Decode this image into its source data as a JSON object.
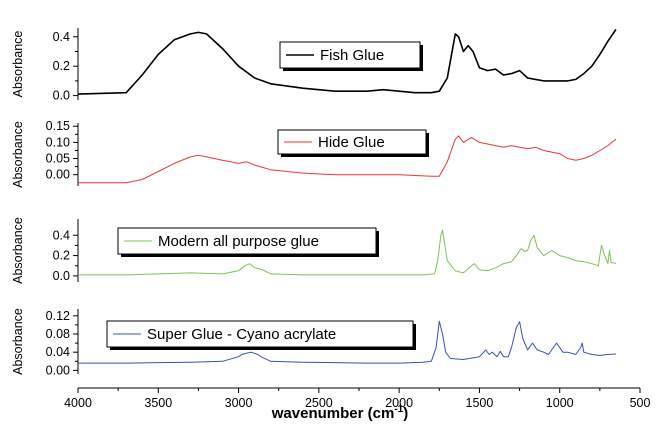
{
  "chart_data": {
    "type": "line",
    "xlabel": "wavenumber (cm",
    "xlabel_sup": "-1",
    "xlabel_tail": ")",
    "xlim": [
      4000,
      500
    ],
    "xticks": [
      "4000",
      "3500",
      "3000",
      "2500",
      "2000",
      "1500",
      "1000",
      "500"
    ],
    "xtick_values": [
      4000,
      3500,
      3000,
      2500,
      2000,
      1500,
      1000,
      500
    ],
    "panels": [
      {
        "ylabel": "Absorbance",
        "ylim": [
          -0.03,
          0.46
        ],
        "yticks": [
          "0.4",
          "0.2",
          "0.0"
        ],
        "ytick_values": [
          0.4,
          0.2,
          0.0
        ],
        "series": [
          {
            "name": "Fish Glue",
            "color": "#000000",
            "x": [
              4000,
              3700,
              3600,
              3500,
              3400,
              3300,
              3250,
              3200,
              3100,
              3000,
              2900,
              2800,
              2600,
              2400,
              2200,
              2100,
              2000,
              1900,
              1800,
              1750,
              1700,
              1650,
              1630,
              1600,
              1570,
              1540,
              1500,
              1450,
              1400,
              1350,
              1300,
              1250,
              1200,
              1150,
              1100,
              1050,
              1000,
              950,
              900,
              850,
              800,
              750,
              700,
              650
            ],
            "y": [
              0.01,
              0.02,
              0.14,
              0.28,
              0.38,
              0.42,
              0.43,
              0.42,
              0.32,
              0.2,
              0.12,
              0.08,
              0.05,
              0.03,
              0.03,
              0.04,
              0.03,
              0.02,
              0.02,
              0.03,
              0.12,
              0.42,
              0.4,
              0.3,
              0.34,
              0.3,
              0.19,
              0.17,
              0.18,
              0.14,
              0.15,
              0.17,
              0.12,
              0.11,
              0.1,
              0.1,
              0.1,
              0.1,
              0.11,
              0.15,
              0.2,
              0.28,
              0.37,
              0.45
            ]
          }
        ]
      },
      {
        "ylabel": "Absorbance",
        "ylim": [
          -0.035,
          0.16
        ],
        "yticks": [
          "0.15",
          "0.10",
          "0.05",
          "0.00"
        ],
        "ytick_values": [
          0.15,
          0.1,
          0.05,
          0.0
        ],
        "series": [
          {
            "name": "Hide Glue",
            "color": "#e8393a",
            "x": [
              4000,
              3700,
              3600,
              3500,
              3400,
              3300,
              3250,
              3200,
              3100,
              3000,
              2950,
              2900,
              2800,
              2600,
              2400,
              2200,
              2000,
              1800,
              1750,
              1700,
              1650,
              1630,
              1600,
              1550,
              1500,
              1450,
              1400,
              1350,
              1300,
              1250,
              1200,
              1150,
              1100,
              1050,
              1000,
              950,
              900,
              850,
              800,
              750,
              700,
              650
            ],
            "y": [
              -0.025,
              -0.025,
              -0.015,
              0.01,
              0.035,
              0.055,
              0.06,
              0.055,
              0.045,
              0.035,
              0.04,
              0.03,
              0.015,
              0.005,
              0.0,
              0.0,
              0.0,
              -0.005,
              -0.005,
              0.04,
              0.11,
              0.12,
              0.1,
              0.115,
              0.1,
              0.095,
              0.09,
              0.085,
              0.09,
              0.085,
              0.08,
              0.085,
              0.075,
              0.07,
              0.065,
              0.05,
              0.045,
              0.05,
              0.06,
              0.075,
              0.09,
              0.11
            ]
          }
        ]
      },
      {
        "ylabel": "Absorbance",
        "ylim": [
          -0.06,
          0.56
        ],
        "yticks": [
          "0.4",
          "0.2",
          "0.0"
        ],
        "ytick_values": [
          0.4,
          0.2,
          0.0
        ],
        "series": [
          {
            "name": "Modern all purpose glue",
            "color": "#7cc15a",
            "x": [
              4000,
              3700,
              3500,
              3300,
              3100,
              3000,
              2960,
              2930,
              2900,
              2870,
              2850,
              2800,
              2600,
              2400,
              2200,
              2000,
              1850,
              1780,
              1760,
              1740,
              1730,
              1720,
              1700,
              1650,
              1600,
              1550,
              1530,
              1500,
              1450,
              1400,
              1350,
              1300,
              1270,
              1240,
              1220,
              1200,
              1180,
              1160,
              1140,
              1100,
              1050,
              1020,
              1000,
              950,
              900,
              850,
              800,
              760,
              740,
              720,
              700,
              690,
              680,
              660,
              650
            ],
            "y": [
              0.01,
              0.01,
              0.02,
              0.03,
              0.02,
              0.05,
              0.1,
              0.12,
              0.08,
              0.07,
              0.06,
              0.02,
              0.01,
              0.01,
              0.01,
              0.01,
              0.01,
              0.02,
              0.15,
              0.4,
              0.45,
              0.35,
              0.15,
              0.05,
              0.03,
              0.1,
              0.12,
              0.06,
              0.05,
              0.08,
              0.12,
              0.14,
              0.2,
              0.27,
              0.24,
              0.25,
              0.35,
              0.4,
              0.28,
              0.2,
              0.25,
              0.22,
              0.2,
              0.18,
              0.15,
              0.14,
              0.12,
              0.1,
              0.3,
              0.2,
              0.12,
              0.25,
              0.13,
              0.13,
              0.12
            ]
          }
        ]
      },
      {
        "ylabel": "Absorbance",
        "ylim": [
          -0.008,
          0.135
        ],
        "yticks": [
          "0.12",
          "0.08",
          "0.04",
          "0.00"
        ],
        "ytick_values": [
          0.12,
          0.08,
          0.04,
          0.0
        ],
        "series": [
          {
            "name": "Super Glue - Cyano acrylate",
            "color": "#3a54a8",
            "x": [
              4000,
              3700,
              3500,
              3300,
              3100,
              3000,
              2980,
              2950,
              2920,
              2880,
              2850,
              2800,
              2600,
              2400,
              2200,
              2000,
              1850,
              1800,
              1770,
              1750,
              1730,
              1710,
              1680,
              1600,
              1500,
              1460,
              1440,
              1420,
              1390,
              1370,
              1350,
              1320,
              1300,
              1270,
              1250,
              1230,
              1200,
              1170,
              1140,
              1100,
              1070,
              1050,
              1020,
              1000,
              980,
              950,
              900,
              870,
              860,
              850,
              800,
              750,
              700,
              650
            ],
            "y": [
              0.016,
              0.016,
              0.017,
              0.018,
              0.02,
              0.03,
              0.035,
              0.038,
              0.04,
              0.035,
              0.028,
              0.02,
              0.018,
              0.017,
              0.016,
              0.016,
              0.018,
              0.02,
              0.05,
              0.108,
              0.08,
              0.04,
              0.026,
              0.024,
              0.03,
              0.045,
              0.035,
              0.04,
              0.03,
              0.042,
              0.03,
              0.03,
              0.05,
              0.095,
              0.107,
              0.07,
              0.045,
              0.06,
              0.045,
              0.04,
              0.035,
              0.045,
              0.06,
              0.05,
              0.04,
              0.04,
              0.035,
              0.05,
              0.06,
              0.04,
              0.035,
              0.033,
              0.035,
              0.036
            ]
          }
        ]
      }
    ]
  }
}
